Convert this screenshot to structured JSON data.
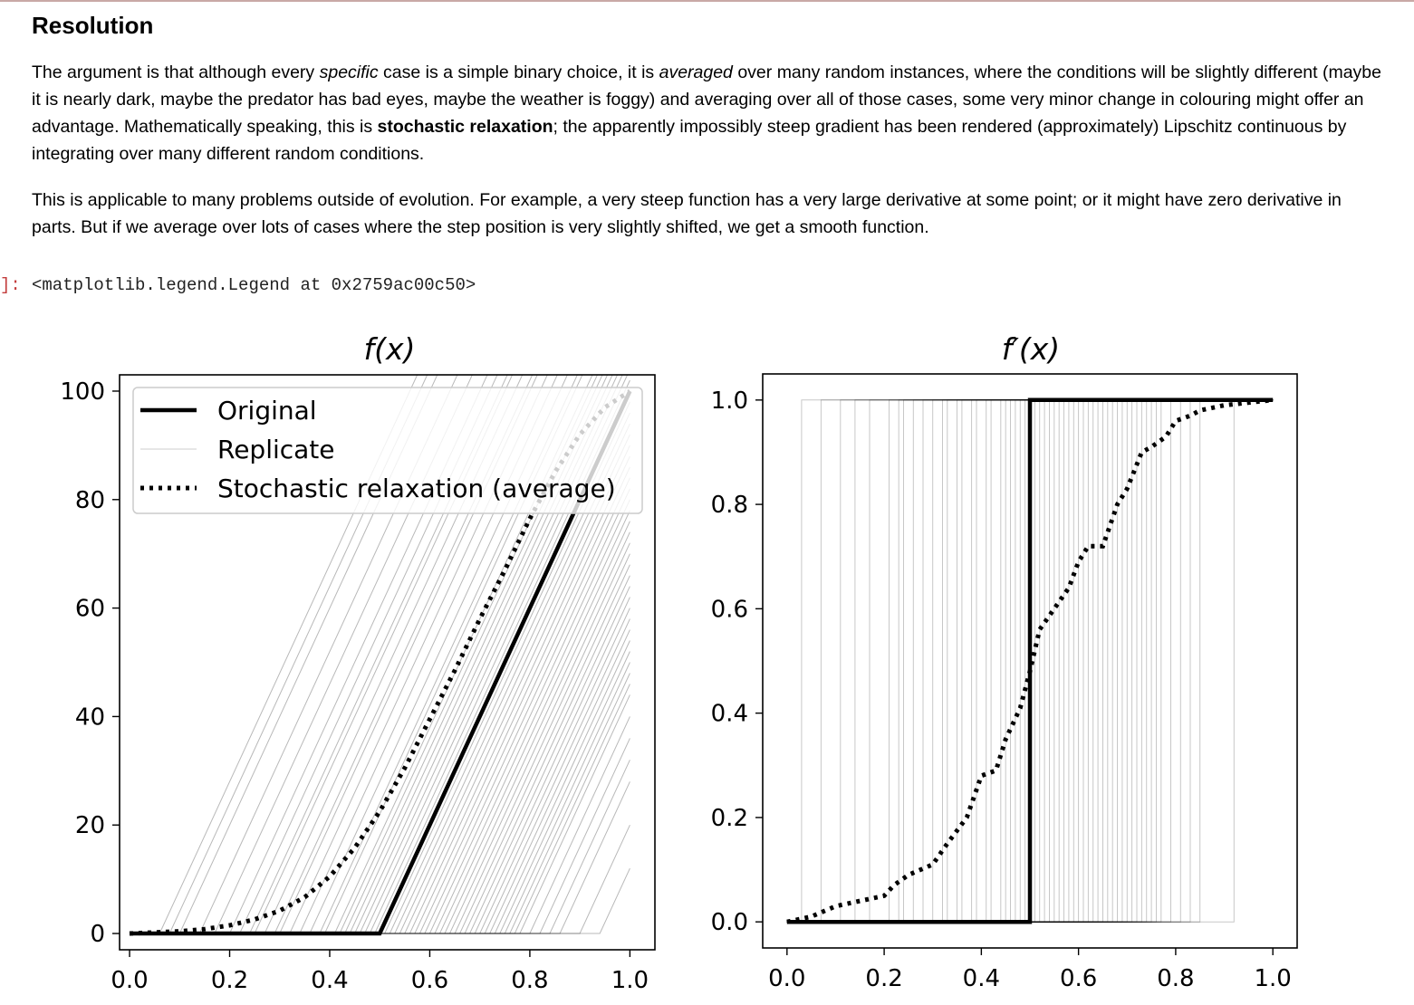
{
  "markdown": {
    "heading": "Resolution",
    "p1": {
      "a": "The argument is that although every ",
      "b": "specific",
      "c": " case is a simple binary choice, it is ",
      "d": "averaged",
      "e": " over many random instances, where the conditions will be slightly different (maybe it is nearly dark, maybe the predator has bad eyes, maybe the weather is foggy) and averaging over all of those cases, some very minor change in colouring might offer an advantage. Mathematically speaking, this is ",
      "f": "stochastic relaxation",
      "g": "; the apparently impossibly steep gradient has been rendered (approximately) Lipschitz continuous by integrating over many different random conditions."
    },
    "p2": "This is applicable to many problems outside of evolution. For example, a very steep function has a very large derivative at some point; or it might have zero derivative in parts. But if we average over lots of cases where the step position is very slightly shifted, we get a smooth function."
  },
  "output": {
    "prompt": "]:",
    "text": "<matplotlib.legend.Legend at 0x2759ac00c50>"
  },
  "colors": {
    "original": "#000000",
    "replicate": "#bdbdbd",
    "average": "#000000"
  },
  "chart_data": [
    {
      "type": "line",
      "title": "f(x)",
      "xlim": [
        -0.02,
        1.05
      ],
      "ylim": [
        -3,
        103
      ],
      "xticks": [
        "0.0",
        "0.2",
        "0.4",
        "0.6",
        "0.8",
        "1.0"
      ],
      "yticks": [
        "0",
        "20",
        "40",
        "60",
        "80",
        "100"
      ],
      "legend": {
        "position": "top-left",
        "entries": [
          "Original",
          "Replicate",
          "Stochastic relaxation (average)"
        ]
      },
      "series": [
        {
          "name": "Original",
          "style": "solid-thick",
          "x": [
            0,
            0.5,
            1.0
          ],
          "y": [
            0,
            0,
            100
          ]
        },
        {
          "name": "Stochastic relaxation (average)",
          "style": "dotted",
          "x": [
            0,
            0.05,
            0.1,
            0.15,
            0.2,
            0.25,
            0.3,
            0.35,
            0.4,
            0.45,
            0.5,
            0.55,
            0.6,
            0.65,
            0.7,
            0.75,
            0.8,
            0.85,
            0.9,
            0.95,
            1.0
          ],
          "y": [
            0,
            0.2,
            0.4,
            0.8,
            1.5,
            2.6,
            4.2,
            6.7,
            10.5,
            15.8,
            22.5,
            30.5,
            39.5,
            48.5,
            58,
            67,
            76.5,
            85,
            92,
            97,
            100
          ]
        },
        {
          "name": "Replicate",
          "style": "thin",
          "knots": [
            0.06,
            0.08,
            0.1,
            0.14,
            0.17,
            0.2,
            0.22,
            0.24,
            0.25,
            0.27,
            0.29,
            0.3,
            0.32,
            0.34,
            0.36,
            0.38,
            0.39,
            0.41,
            0.42,
            0.43,
            0.44,
            0.45,
            0.46,
            0.47,
            0.48,
            0.49,
            0.5,
            0.51,
            0.52,
            0.53,
            0.54,
            0.55,
            0.56,
            0.57,
            0.58,
            0.59,
            0.6,
            0.61,
            0.62,
            0.63,
            0.64,
            0.65,
            0.66,
            0.67,
            0.68,
            0.69,
            0.7,
            0.71,
            0.72,
            0.73,
            0.74,
            0.75,
            0.76,
            0.77,
            0.78,
            0.8,
            0.82,
            0.84,
            0.86,
            0.9,
            0.94
          ]
        }
      ]
    },
    {
      "type": "line",
      "title": "f′(x)",
      "xlim": [
        -0.05,
        1.05
      ],
      "ylim": [
        -0.05,
        1.05
      ],
      "xticks": [
        "0.0",
        "0.2",
        "0.4",
        "0.6",
        "0.8",
        "1.0"
      ],
      "yticks": [
        "0.0",
        "0.2",
        "0.4",
        "0.6",
        "0.8",
        "1.0"
      ],
      "series": [
        {
          "name": "Original",
          "style": "solid-thick",
          "x": [
            0,
            0.5,
            0.5,
            1.0
          ],
          "y": [
            0,
            0,
            1,
            1
          ]
        },
        {
          "name": "Stochastic relaxation (average)",
          "style": "dotted",
          "x": [
            0,
            0.05,
            0.1,
            0.15,
            0.2,
            0.22,
            0.25,
            0.3,
            0.33,
            0.37,
            0.4,
            0.43,
            0.45,
            0.48,
            0.5,
            0.52,
            0.55,
            0.58,
            0.6,
            0.62,
            0.65,
            0.68,
            0.7,
            0.73,
            0.75,
            0.78,
            0.8,
            0.83,
            0.85,
            0.9,
            0.95,
            1.0
          ],
          "y": [
            0,
            0.01,
            0.03,
            0.04,
            0.05,
            0.07,
            0.09,
            0.11,
            0.15,
            0.2,
            0.28,
            0.29,
            0.35,
            0.41,
            0.48,
            0.56,
            0.6,
            0.64,
            0.69,
            0.72,
            0.72,
            0.8,
            0.83,
            0.9,
            0.91,
            0.93,
            0.96,
            0.97,
            0.98,
            0.99,
            0.995,
            1.0
          ]
        },
        {
          "name": "Replicate",
          "style": "thin",
          "steps": [
            0.03,
            0.07,
            0.11,
            0.14,
            0.17,
            0.21,
            0.23,
            0.24,
            0.26,
            0.28,
            0.3,
            0.32,
            0.33,
            0.35,
            0.36,
            0.38,
            0.39,
            0.41,
            0.42,
            0.44,
            0.45,
            0.46,
            0.47,
            0.48,
            0.49,
            0.5,
            0.51,
            0.52,
            0.53,
            0.54,
            0.55,
            0.56,
            0.57,
            0.58,
            0.59,
            0.6,
            0.61,
            0.62,
            0.63,
            0.64,
            0.65,
            0.66,
            0.67,
            0.68,
            0.69,
            0.7,
            0.71,
            0.72,
            0.73,
            0.74,
            0.75,
            0.76,
            0.77,
            0.79,
            0.81,
            0.83,
            0.85,
            0.92
          ]
        }
      ]
    }
  ]
}
